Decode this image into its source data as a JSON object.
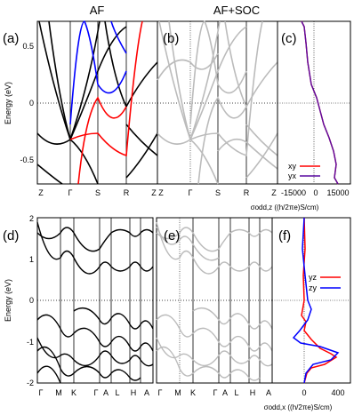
{
  "chart_data": [
    {
      "type": "line",
      "panel": "(a)",
      "title": "AF",
      "ylabel": "Energy (eV)",
      "ylim": [
        -0.7,
        0.7
      ],
      "yticks": [
        "0.5",
        "0",
        "-0.5"
      ],
      "xticks": [
        "Z",
        "Γ",
        "S",
        "R",
        "Z"
      ],
      "series": [
        {
          "color": "#000000",
          "x": [
            0,
            1,
            2,
            3,
            4
          ],
          "y": [
            0.7,
            -0.32,
            0.1,
            0.55,
            0.7
          ]
        },
        {
          "color": "#000000",
          "x": [
            0,
            1,
            2,
            3,
            4
          ],
          "y": [
            -0.2,
            -0.32,
            -0.6,
            -0.1,
            0.3
          ]
        },
        {
          "color": "#0000ff",
          "x": [
            1,
            1.4,
            2,
            2.6,
            3
          ],
          "y": [
            0.2,
            0.7,
            0.3,
            0.05,
            0.3
          ]
        },
        {
          "color": "#ff0000",
          "x": [
            1,
            1.5,
            2,
            2.7,
            3
          ],
          "y": [
            -0.7,
            -0.3,
            0.1,
            -0.45,
            0.6
          ]
        }
      ]
    },
    {
      "type": "line",
      "panel": "(b)",
      "title": "AF+SOC",
      "xticks": [
        "Z",
        "Γ",
        "S",
        "R",
        "Z"
      ],
      "series_color": "#bbbbbb"
    },
    {
      "type": "line",
      "panel": "(c)",
      "xlabel": "σodd,z ((ħ/2πe)S/cm)",
      "xticks": [
        "-15000",
        "0",
        "15000"
      ],
      "series": [
        {
          "name": "xy",
          "color": "#ff0000",
          "x": [
            0,
            -1000,
            2000,
            6000,
            8000,
            12000,
            15000,
            14000
          ],
          "y": [
            0.7,
            0.5,
            0.2,
            0.0,
            -0.2,
            -0.4,
            -0.6,
            -0.7
          ]
        },
        {
          "name": "yx",
          "color": "#4b0082",
          "x": [
            0,
            -1000,
            2000,
            6000,
            8000,
            12000,
            15000,
            14000
          ],
          "y": [
            0.7,
            0.5,
            0.2,
            0.0,
            -0.2,
            -0.4,
            -0.6,
            -0.7
          ]
        }
      ]
    },
    {
      "type": "line",
      "panel": "(d)",
      "ylabel": "Energy (eV)",
      "ylim": [
        -2,
        2
      ],
      "yticks": [
        "2",
        "1",
        "0",
        "-1",
        "-2"
      ],
      "xticks": [
        "Γ",
        "M",
        "K",
        "Γ",
        "A",
        "L",
        "H",
        "A"
      ]
    },
    {
      "type": "line",
      "panel": "(e)",
      "xticks": [
        "Γ",
        "M",
        "K",
        "Γ",
        "A",
        "L",
        "H",
        "A"
      ]
    },
    {
      "type": "line",
      "panel": "(f)",
      "xlabel": "σodd,x ((ħ/2πe)S/cm)",
      "xticks": [
        "0",
        "400"
      ],
      "series": [
        {
          "name": "yz",
          "color": "#ff0000",
          "x": [
            0,
            10,
            0,
            -20,
            0,
            80,
            300,
            150,
            20,
            0
          ],
          "y": [
            2,
            1.2,
            0.4,
            -0.3,
            -0.6,
            -1.0,
            -1.25,
            -1.5,
            -1.8,
            -2
          ]
        },
        {
          "name": "zy",
          "color": "#0000ff",
          "x": [
            0,
            -10,
            20,
            60,
            40,
            200,
            380,
            200,
            60,
            20
          ],
          "y": [
            2,
            1.2,
            0.4,
            -0.3,
            -0.6,
            -1.0,
            -1.25,
            -1.45,
            -1.8,
            -2
          ]
        }
      ]
    }
  ],
  "panels": {
    "a": {
      "label": "(a)"
    },
    "b": {
      "label": "(b)"
    },
    "c": {
      "label": "(c)"
    },
    "d": {
      "label": "(d)"
    },
    "e": {
      "label": "(e)"
    },
    "f": {
      "label": "(f)"
    }
  },
  "titles": {
    "af": "AF",
    "afsoc": "AF+SOC"
  },
  "yaxis": {
    "top": "Energy (eV)",
    "bottom": "Energy (eV)"
  },
  "top_yticks": [
    "0.5",
    "0",
    "-0.5"
  ],
  "top_xticks": [
    "Z",
    "Γ",
    "S",
    "R",
    "Z"
  ],
  "bot_yticks": [
    "2",
    "1",
    "0",
    "-1",
    "-2"
  ],
  "bot_xticks": [
    "Γ",
    "M",
    "K",
    "Γ",
    "A",
    "L",
    "H",
    "A"
  ],
  "bot_xticks_e": [
    "Γ",
    "M",
    "K",
    "Γ",
    "A",
    "L",
    "H",
    "A"
  ],
  "legend_c": [
    "xy",
    "yx"
  ],
  "legend_f": [
    "yz",
    "zy"
  ],
  "c_xticks": [
    "-15000",
    "0",
    "15000"
  ],
  "f_xticks": [
    "0",
    "400"
  ],
  "c_xlabel": "σodd,z ((h/2πe)S/cm)",
  "f_xlabel": "σodd,x ((h/2πe)S/cm)"
}
